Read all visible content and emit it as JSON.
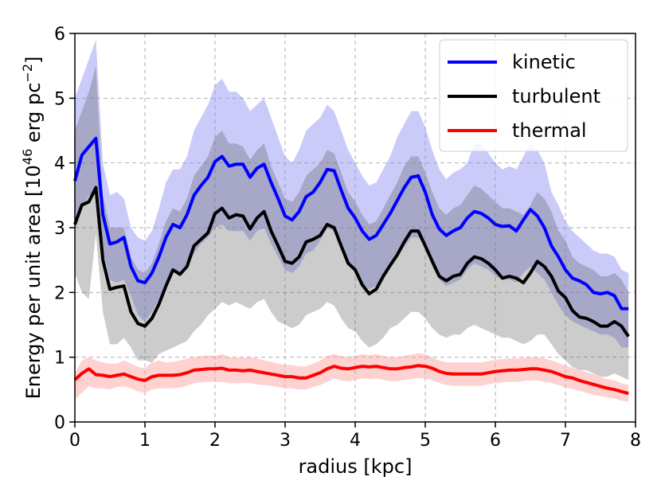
{
  "chart_data": {
    "type": "line",
    "title": "",
    "xlabel": "radius [kpc]",
    "ylabel_main": "Energy per unit area [10",
    "ylabel_exp": "46",
    "ylabel_unit": " erg pc",
    "ylabel_unit_exp": "−2",
    "ylabel_close": "]",
    "xlim": [
      0,
      8
    ],
    "ylim": [
      0,
      6
    ],
    "xticks": [
      "0",
      "1",
      "2",
      "3",
      "4",
      "5",
      "6",
      "7",
      "8"
    ],
    "yticks": [
      "0",
      "1",
      "2",
      "3",
      "4",
      "5",
      "6"
    ],
    "grid": true,
    "legend_position": "top-right",
    "x": [
      0.0,
      0.1,
      0.2,
      0.3,
      0.4,
      0.5,
      0.6,
      0.7,
      0.8,
      0.9,
      1.0,
      1.1,
      1.2,
      1.3,
      1.4,
      1.5,
      1.6,
      1.7,
      1.8,
      1.9,
      2.0,
      2.1,
      2.2,
      2.3,
      2.4,
      2.5,
      2.6,
      2.7,
      2.8,
      2.9,
      3.0,
      3.1,
      3.2,
      3.3,
      3.4,
      3.5,
      3.6,
      3.7,
      3.8,
      3.9,
      4.0,
      4.1,
      4.2,
      4.3,
      4.4,
      4.5,
      4.6,
      4.7,
      4.8,
      4.9,
      5.0,
      5.1,
      5.2,
      5.3,
      5.4,
      5.5,
      5.6,
      5.7,
      5.8,
      5.9,
      6.0,
      6.1,
      6.2,
      6.3,
      6.4,
      6.5,
      6.6,
      6.7,
      6.8,
      6.9,
      7.0,
      7.1,
      7.2,
      7.3,
      7.4,
      7.5,
      7.6,
      7.7,
      7.8,
      7.9
    ],
    "series": [
      {
        "name": "kinetic",
        "color": "#0000ff",
        "band_color": "#8c8cf2",
        "values": [
          3.72,
          4.12,
          4.25,
          4.38,
          3.2,
          2.75,
          2.78,
          2.85,
          2.4,
          2.18,
          2.15,
          2.3,
          2.55,
          2.85,
          3.05,
          3.0,
          3.2,
          3.5,
          3.65,
          3.78,
          4.02,
          4.1,
          3.95,
          3.98,
          3.98,
          3.78,
          3.92,
          3.98,
          3.7,
          3.45,
          3.18,
          3.12,
          3.25,
          3.48,
          3.55,
          3.7,
          3.9,
          3.88,
          3.58,
          3.3,
          3.15,
          2.95,
          2.82,
          2.88,
          3.05,
          3.22,
          3.42,
          3.62,
          3.78,
          3.8,
          3.55,
          3.2,
          2.98,
          2.88,
          2.95,
          3.0,
          3.15,
          3.25,
          3.22,
          3.15,
          3.05,
          3.02,
          3.03,
          2.95,
          3.12,
          3.28,
          3.18,
          3.0,
          2.72,
          2.55,
          2.35,
          2.22,
          2.18,
          2.12,
          2.0,
          1.98,
          2.0,
          1.95,
          1.75,
          1.75
        ],
        "upper": [
          5.0,
          5.3,
          5.6,
          5.9,
          4.0,
          3.5,
          3.55,
          3.45,
          3.0,
          2.85,
          2.8,
          2.95,
          3.3,
          3.7,
          3.9,
          3.9,
          4.1,
          4.5,
          4.7,
          4.9,
          5.2,
          5.3,
          5.1,
          5.1,
          5.0,
          4.8,
          4.9,
          5.0,
          4.7,
          4.4,
          4.1,
          4.0,
          4.2,
          4.5,
          4.6,
          4.7,
          4.9,
          4.8,
          4.5,
          4.2,
          4.0,
          3.8,
          3.65,
          3.7,
          3.9,
          4.1,
          4.4,
          4.6,
          4.8,
          4.8,
          4.55,
          4.2,
          3.9,
          3.75,
          3.85,
          3.9,
          4.0,
          4.3,
          4.3,
          4.15,
          4.0,
          3.9,
          3.95,
          3.9,
          4.1,
          4.3,
          4.2,
          4.0,
          3.55,
          3.35,
          3.1,
          2.95,
          2.85,
          2.75,
          2.65,
          2.6,
          2.6,
          2.55,
          2.35,
          2.3
        ],
        "lower": [
          3.0,
          3.3,
          3.5,
          3.5,
          2.65,
          2.2,
          2.15,
          2.2,
          1.95,
          1.65,
          1.55,
          1.7,
          1.9,
          2.1,
          2.35,
          2.25,
          2.4,
          2.6,
          2.75,
          2.85,
          3.0,
          3.05,
          2.95,
          2.95,
          2.95,
          2.8,
          2.95,
          3.0,
          2.75,
          2.55,
          2.35,
          2.3,
          2.4,
          2.6,
          2.65,
          2.8,
          3.0,
          2.95,
          2.7,
          2.45,
          2.3,
          2.15,
          2.05,
          2.1,
          2.25,
          2.4,
          2.55,
          2.7,
          2.85,
          2.85,
          2.7,
          2.4,
          2.2,
          2.1,
          2.15,
          2.2,
          2.35,
          2.45,
          2.4,
          2.35,
          2.25,
          2.2,
          2.2,
          2.15,
          2.3,
          2.4,
          2.3,
          2.2,
          2.0,
          1.8,
          1.65,
          1.55,
          1.5,
          1.45,
          1.4,
          1.35,
          1.35,
          1.3,
          1.15,
          1.15
        ]
      },
      {
        "name": "turbulent",
        "color": "#000000",
        "band_color": "#555555",
        "values": [
          3.05,
          3.35,
          3.4,
          3.62,
          2.5,
          2.05,
          2.08,
          2.1,
          1.7,
          1.52,
          1.48,
          1.6,
          1.82,
          2.1,
          2.35,
          2.28,
          2.4,
          2.72,
          2.82,
          2.92,
          3.22,
          3.3,
          3.15,
          3.2,
          3.18,
          2.98,
          3.15,
          3.25,
          2.95,
          2.72,
          2.48,
          2.45,
          2.55,
          2.78,
          2.82,
          2.88,
          3.05,
          3.0,
          2.72,
          2.45,
          2.35,
          2.12,
          1.98,
          2.05,
          2.25,
          2.42,
          2.58,
          2.78,
          2.95,
          2.95,
          2.72,
          2.48,
          2.25,
          2.18,
          2.25,
          2.28,
          2.45,
          2.55,
          2.52,
          2.45,
          2.35,
          2.22,
          2.25,
          2.22,
          2.15,
          2.3,
          2.48,
          2.4,
          2.25,
          2.02,
          1.92,
          1.72,
          1.62,
          1.6,
          1.55,
          1.48,
          1.48,
          1.55,
          1.48,
          1.32
        ],
        "upper": [
          4.5,
          4.8,
          5.1,
          5.5,
          3.5,
          3.0,
          3.0,
          3.0,
          2.55,
          2.35,
          2.3,
          2.45,
          2.75,
          3.1,
          3.3,
          3.25,
          3.45,
          3.8,
          3.95,
          4.1,
          4.4,
          4.5,
          4.3,
          4.3,
          4.25,
          4.05,
          4.2,
          4.3,
          3.95,
          3.7,
          3.45,
          3.4,
          3.55,
          3.8,
          3.9,
          4.0,
          4.2,
          4.15,
          3.85,
          3.55,
          3.4,
          3.2,
          3.05,
          3.1,
          3.3,
          3.5,
          3.7,
          3.95,
          4.1,
          4.1,
          3.85,
          3.55,
          3.3,
          3.2,
          3.3,
          3.35,
          3.5,
          3.65,
          3.6,
          3.5,
          3.4,
          3.3,
          3.3,
          3.25,
          3.2,
          3.35,
          3.55,
          3.45,
          3.25,
          2.95,
          2.8,
          2.55,
          2.45,
          2.4,
          2.35,
          2.25,
          2.25,
          2.3,
          2.2,
          2.0
        ],
        "lower": [
          2.3,
          2.0,
          1.9,
          2.9,
          1.7,
          1.2,
          1.2,
          1.3,
          1.15,
          0.95,
          0.95,
          0.92,
          1.05,
          1.1,
          1.15,
          1.2,
          1.25,
          1.4,
          1.5,
          1.65,
          1.75,
          1.85,
          1.8,
          1.85,
          1.8,
          1.75,
          1.85,
          1.9,
          1.7,
          1.55,
          1.5,
          1.45,
          1.5,
          1.65,
          1.7,
          1.75,
          1.85,
          1.8,
          1.6,
          1.45,
          1.4,
          1.25,
          1.15,
          1.2,
          1.3,
          1.45,
          1.5,
          1.6,
          1.7,
          1.7,
          1.6,
          1.45,
          1.35,
          1.3,
          1.35,
          1.35,
          1.45,
          1.5,
          1.45,
          1.4,
          1.35,
          1.3,
          1.3,
          1.25,
          1.2,
          1.25,
          1.35,
          1.35,
          1.2,
          1.05,
          0.95,
          0.85,
          0.8,
          0.8,
          0.75,
          0.7,
          0.7,
          0.75,
          0.7,
          0.65
        ]
      },
      {
        "name": "thermal",
        "color": "#ff0000",
        "band_color": "#ff9c9c",
        "values": [
          0.65,
          0.75,
          0.82,
          0.73,
          0.72,
          0.7,
          0.72,
          0.74,
          0.7,
          0.66,
          0.64,
          0.7,
          0.72,
          0.72,
          0.72,
          0.73,
          0.76,
          0.8,
          0.81,
          0.82,
          0.82,
          0.83,
          0.8,
          0.8,
          0.79,
          0.8,
          0.78,
          0.76,
          0.74,
          0.72,
          0.7,
          0.7,
          0.68,
          0.68,
          0.72,
          0.76,
          0.82,
          0.86,
          0.83,
          0.82,
          0.84,
          0.86,
          0.85,
          0.86,
          0.84,
          0.82,
          0.82,
          0.84,
          0.85,
          0.87,
          0.86,
          0.83,
          0.78,
          0.75,
          0.74,
          0.74,
          0.74,
          0.74,
          0.74,
          0.76,
          0.78,
          0.79,
          0.8,
          0.8,
          0.81,
          0.82,
          0.82,
          0.8,
          0.78,
          0.74,
          0.7,
          0.68,
          0.64,
          0.61,
          0.58,
          0.55,
          0.52,
          0.5,
          0.47,
          0.44
        ],
        "upper": [
          0.75,
          0.95,
          1.0,
          0.95,
          0.92,
          0.9,
          0.9,
          0.95,
          0.9,
          0.85,
          0.83,
          0.92,
          0.95,
          0.92,
          0.93,
          0.95,
          0.98,
          1.0,
          1.02,
          1.03,
          1.02,
          1.05,
          1.0,
          1.0,
          0.99,
          1.0,
          0.98,
          0.95,
          0.93,
          0.9,
          0.88,
          0.88,
          0.86,
          0.86,
          0.9,
          0.95,
          1.02,
          1.05,
          1.02,
          1.0,
          1.02,
          1.05,
          1.03,
          1.05,
          1.02,
          1.0,
          1.0,
          1.02,
          1.04,
          1.06,
          1.05,
          1.0,
          0.95,
          0.92,
          0.92,
          0.92,
          0.92,
          0.92,
          0.92,
          0.94,
          0.96,
          0.97,
          0.98,
          0.98,
          0.99,
          1.0,
          1.0,
          0.98,
          0.95,
          0.91,
          0.87,
          0.84,
          0.8,
          0.77,
          0.74,
          0.7,
          0.66,
          0.64,
          0.6,
          0.57
        ],
        "lower": [
          0.35,
          0.45,
          0.55,
          0.52,
          0.52,
          0.5,
          0.54,
          0.55,
          0.52,
          0.47,
          0.45,
          0.5,
          0.52,
          0.52,
          0.52,
          0.53,
          0.56,
          0.6,
          0.61,
          0.62,
          0.62,
          0.62,
          0.6,
          0.6,
          0.6,
          0.6,
          0.58,
          0.57,
          0.56,
          0.54,
          0.52,
          0.52,
          0.5,
          0.5,
          0.54,
          0.57,
          0.62,
          0.67,
          0.64,
          0.63,
          0.65,
          0.67,
          0.66,
          0.67,
          0.65,
          0.63,
          0.63,
          0.65,
          0.66,
          0.68,
          0.67,
          0.65,
          0.6,
          0.57,
          0.56,
          0.56,
          0.56,
          0.56,
          0.56,
          0.58,
          0.6,
          0.61,
          0.62,
          0.62,
          0.63,
          0.64,
          0.64,
          0.62,
          0.6,
          0.57,
          0.53,
          0.51,
          0.48,
          0.45,
          0.42,
          0.4,
          0.38,
          0.36,
          0.33,
          0.31
        ]
      }
    ]
  }
}
